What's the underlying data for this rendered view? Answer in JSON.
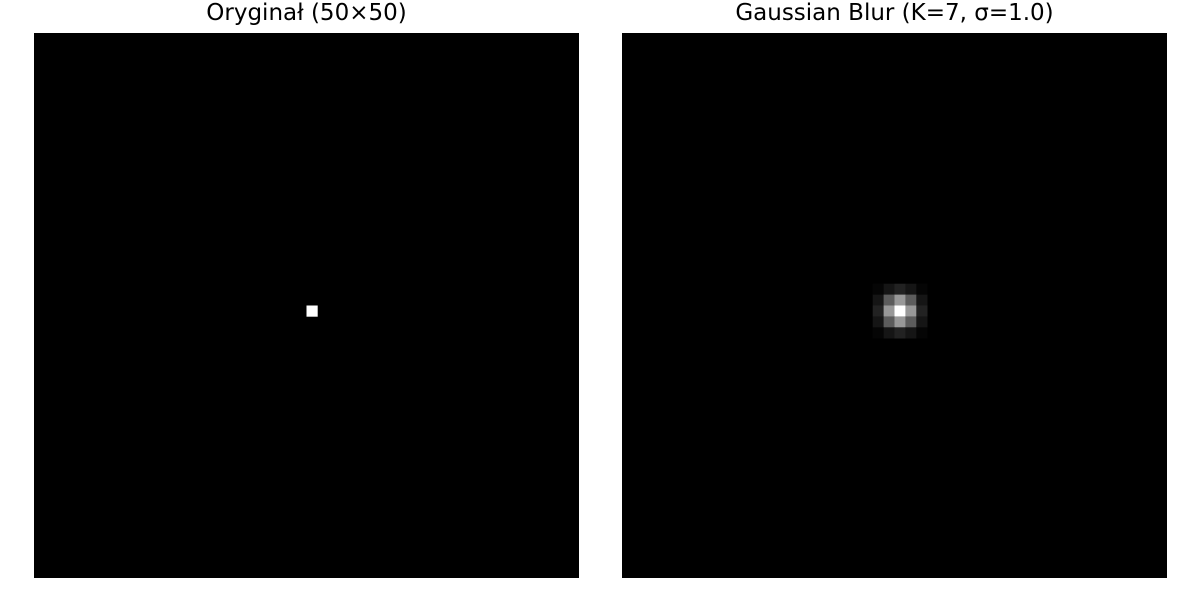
{
  "chart_data": [
    {
      "type": "heatmap",
      "title": "Oryginał (50×50)",
      "grid_size": [
        50,
        50
      ],
      "colormap": "gray",
      "axes": "off",
      "value_range": [
        0,
        1
      ],
      "center": [
        25,
        25
      ],
      "values": [
        [
          1
        ]
      ]
    },
    {
      "type": "heatmap",
      "title": "Gaussian Blur (K=7, σ=1.0)",
      "grid_size": [
        50,
        50
      ],
      "colormap": "gray",
      "axes": "off",
      "value_range": [
        0,
        0.1621
      ],
      "center": [
        25,
        25
      ],
      "values": [
        [
          0.0,
          0.0,
          0.0001,
          0.0002,
          0.0001,
          0.0,
          0.0
        ],
        [
          0.0,
          0.0029,
          0.0131,
          0.0215,
          0.0131,
          0.0029,
          0.0
        ],
        [
          0.0001,
          0.0131,
          0.0586,
          0.0965,
          0.0586,
          0.0131,
          0.0001
        ],
        [
          0.0002,
          0.0215,
          0.0965,
          0.1621,
          0.0965,
          0.0215,
          0.0002
        ],
        [
          0.0001,
          0.0131,
          0.0586,
          0.0965,
          0.0586,
          0.0131,
          0.0001
        ],
        [
          0.0,
          0.0029,
          0.0131,
          0.0215,
          0.0131,
          0.0029,
          0.0
        ],
        [
          0.0,
          0.0,
          0.0001,
          0.0002,
          0.0001,
          0.0,
          0.0
        ]
      ]
    }
  ]
}
